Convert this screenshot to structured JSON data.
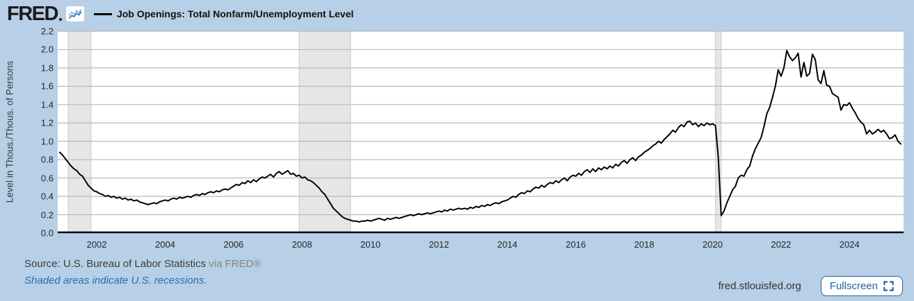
{
  "header": {
    "logo": "FRED",
    "title": "Job Openings: Total Nonfarm/Unemployment Level"
  },
  "y_axis_title": "Level in Thous./Thous. of Persons",
  "footer": {
    "source_label": "Source: U.S. Bureau of Labor Statistics",
    "via": "via FRED®",
    "recession_note": "Shaded areas indicate U.S. recessions.",
    "site": "fred.stlouisfed.org",
    "fullscreen_label": "Fullscreen"
  },
  "colors": {
    "background": "#b7cfe7",
    "plot_background": "#ffffff",
    "series_line": "#000000",
    "gridline": "#b9b9b9",
    "recession_band": "#e6e6e6",
    "recession_band_edge": "#c9c9c9",
    "axis_line": "#000000",
    "accent_blue": "#2470b3"
  },
  "chart_data": {
    "type": "line",
    "title": "Job Openings: Total Nonfarm/Unemployment Level",
    "xlabel": "",
    "ylabel": "Level in Thous./Thous. of Persons",
    "frequency": "monthly",
    "start": "2000-12",
    "end": "2025-07",
    "x_range": [
      2000.86,
      2025.58
    ],
    "y_range": [
      0,
      2.2
    ],
    "x_ticks": [
      2002,
      2004,
      2006,
      2008,
      2010,
      2012,
      2014,
      2016,
      2018,
      2020,
      2022,
      2024
    ],
    "y_ticks": [
      "0.0",
      "0.2",
      "0.4",
      "0.6",
      "0.8",
      "1.0",
      "1.2",
      "1.4",
      "1.6",
      "1.8",
      "2.0",
      "2.2"
    ],
    "grid": true,
    "legend_position": "top-header",
    "recessions": [
      {
        "start": "2001-03",
        "end": "2001-11",
        "start_year": 2001.167,
        "end_year": 2001.833
      },
      {
        "start": "2007-12",
        "end": "2009-06",
        "start_year": 2007.917,
        "end_year": 2009.417
      },
      {
        "start": "2020-02",
        "end": "2020-04",
        "start_year": 2020.083,
        "end_year": 2020.25
      }
    ],
    "series_start_year": 2000.9167,
    "values": [
      0.88,
      0.85,
      0.81,
      0.77,
      0.73,
      0.7,
      0.68,
      0.64,
      0.62,
      0.57,
      0.52,
      0.49,
      0.46,
      0.45,
      0.43,
      0.42,
      0.4,
      0.41,
      0.39,
      0.4,
      0.38,
      0.39,
      0.37,
      0.38,
      0.36,
      0.37,
      0.35,
      0.36,
      0.34,
      0.33,
      0.32,
      0.31,
      0.32,
      0.33,
      0.32,
      0.34,
      0.35,
      0.36,
      0.35,
      0.37,
      0.38,
      0.37,
      0.39,
      0.38,
      0.39,
      0.4,
      0.39,
      0.41,
      0.42,
      0.41,
      0.43,
      0.42,
      0.44,
      0.45,
      0.44,
      0.46,
      0.45,
      0.47,
      0.48,
      0.47,
      0.49,
      0.51,
      0.53,
      0.52,
      0.55,
      0.54,
      0.57,
      0.55,
      0.58,
      0.56,
      0.59,
      0.61,
      0.6,
      0.62,
      0.64,
      0.61,
      0.65,
      0.67,
      0.64,
      0.66,
      0.68,
      0.64,
      0.65,
      0.62,
      0.63,
      0.6,
      0.61,
      0.58,
      0.57,
      0.55,
      0.52,
      0.49,
      0.45,
      0.42,
      0.37,
      0.32,
      0.27,
      0.24,
      0.21,
      0.18,
      0.16,
      0.15,
      0.14,
      0.13,
      0.13,
      0.12,
      0.13,
      0.13,
      0.14,
      0.13,
      0.14,
      0.15,
      0.16,
      0.15,
      0.14,
      0.16,
      0.15,
      0.16,
      0.17,
      0.16,
      0.17,
      0.18,
      0.19,
      0.2,
      0.19,
      0.2,
      0.21,
      0.2,
      0.21,
      0.22,
      0.21,
      0.22,
      0.23,
      0.24,
      0.23,
      0.25,
      0.24,
      0.26,
      0.25,
      0.26,
      0.27,
      0.26,
      0.27,
      0.26,
      0.28,
      0.27,
      0.29,
      0.28,
      0.3,
      0.29,
      0.31,
      0.3,
      0.32,
      0.33,
      0.32,
      0.34,
      0.35,
      0.36,
      0.38,
      0.4,
      0.39,
      0.42,
      0.44,
      0.43,
      0.46,
      0.45,
      0.48,
      0.5,
      0.49,
      0.52,
      0.5,
      0.53,
      0.55,
      0.54,
      0.57,
      0.55,
      0.58,
      0.6,
      0.57,
      0.61,
      0.63,
      0.62,
      0.65,
      0.63,
      0.67,
      0.69,
      0.66,
      0.7,
      0.67,
      0.71,
      0.69,
      0.72,
      0.7,
      0.73,
      0.71,
      0.75,
      0.73,
      0.77,
      0.79,
      0.76,
      0.8,
      0.82,
      0.79,
      0.83,
      0.85,
      0.88,
      0.9,
      0.92,
      0.95,
      0.97,
      1.0,
      0.98,
      1.02,
      1.05,
      1.08,
      1.12,
      1.1,
      1.15,
      1.18,
      1.16,
      1.21,
      1.22,
      1.18,
      1.2,
      1.16,
      1.19,
      1.17,
      1.2,
      1.18,
      1.19,
      1.17,
      0.82,
      0.19,
      0.24,
      0.33,
      0.4,
      0.47,
      0.51,
      0.6,
      0.63,
      0.62,
      0.69,
      0.73,
      0.84,
      0.92,
      0.98,
      1.04,
      1.16,
      1.3,
      1.37,
      1.48,
      1.6,
      1.78,
      1.71,
      1.8,
      1.99,
      1.92,
      1.88,
      1.91,
      1.96,
      1.7,
      1.86,
      1.71,
      1.74,
      1.95,
      1.89,
      1.67,
      1.63,
      1.77,
      1.61,
      1.6,
      1.52,
      1.5,
      1.48,
      1.34,
      1.4,
      1.39,
      1.42,
      1.36,
      1.31,
      1.25,
      1.21,
      1.18,
      1.08,
      1.12,
      1.08,
      1.1,
      1.13,
      1.1,
      1.12,
      1.08,
      1.03,
      1.04,
      1.07,
      1.0,
      0.97
    ]
  }
}
